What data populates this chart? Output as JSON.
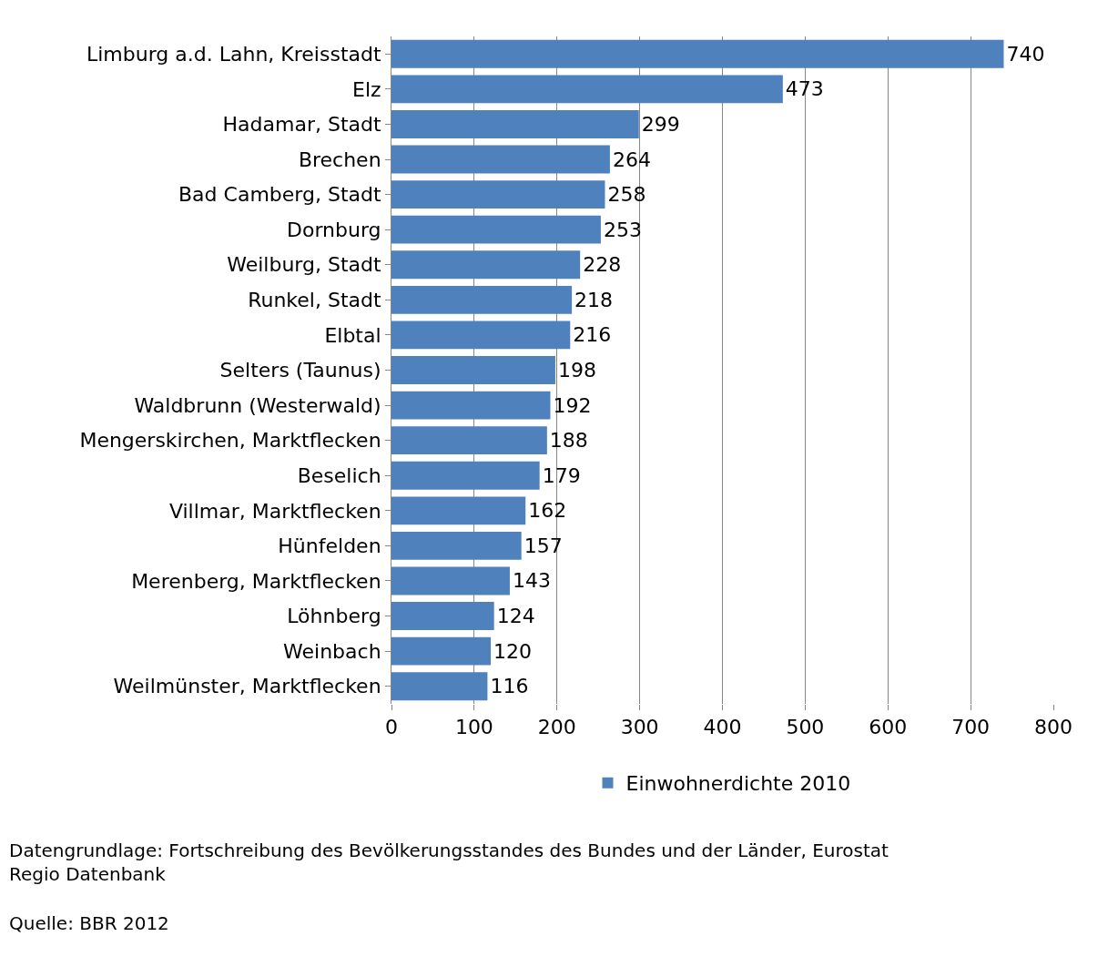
{
  "chart_data": {
    "type": "bar",
    "orientation": "horizontal",
    "categories": [
      "Limburg a.d. Lahn, Kreisstadt",
      "Elz",
      "Hadamar, Stadt",
      "Brechen",
      "Bad Camberg, Stadt",
      "Dornburg",
      "Weilburg, Stadt",
      "Runkel, Stadt",
      "Elbtal",
      "Selters (Taunus)",
      "Waldbrunn (Westerwald)",
      "Mengerskirchen, Marktflecken",
      "Beselich",
      "Villmar, Marktflecken",
      "Hünfelden",
      "Merenberg, Marktflecken",
      "Löhnberg",
      "Weinbach",
      "Weilmünster, Marktflecken"
    ],
    "series": [
      {
        "name": "Einwohnerdichte 2010",
        "color": "#4f81bd",
        "values": [
          740,
          473,
          299,
          264,
          258,
          253,
          228,
          218,
          216,
          198,
          192,
          188,
          179,
          162,
          157,
          143,
          124,
          120,
          116
        ]
      }
    ],
    "data_labels": true,
    "xlim": [
      0,
      800
    ],
    "xticks": [
      0,
      100,
      200,
      300,
      400,
      500,
      600,
      700,
      800
    ],
    "grid": "x",
    "legend": "bottom",
    "annotations": [
      "Datengrundlage: Fortschreibung des Bevölkerungsstandes des Bundes und der Länder, Eurostat Regio Datenbank",
      "Quelle: BBR 2012"
    ]
  }
}
